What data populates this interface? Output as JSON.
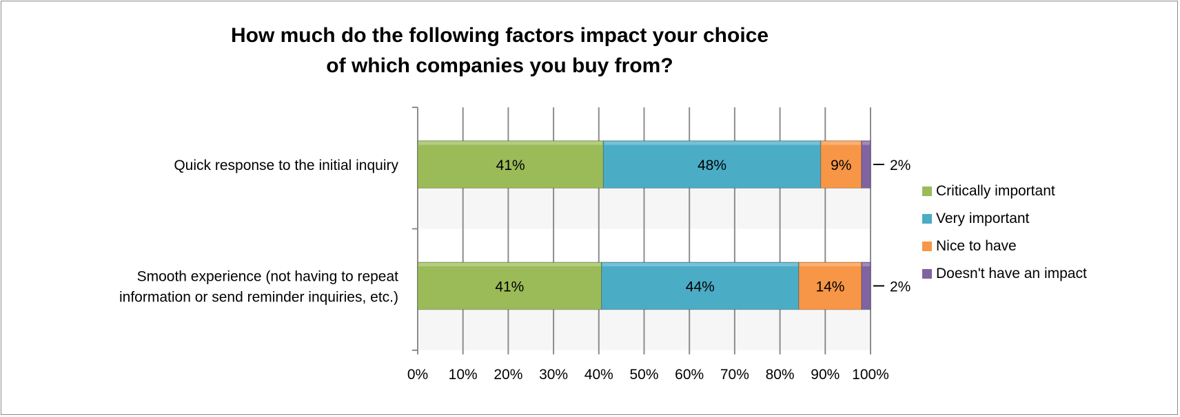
{
  "chart_data": {
    "type": "bar",
    "orientation": "horizontal",
    "stacked": "100%",
    "title": "How much do the following factors impact your choice of which companies you buy from?",
    "title_lines": [
      "How much do the following factors impact your choice",
      "of which companies you buy from?"
    ],
    "categories": [
      [
        "Quick response to the initial inquiry"
      ],
      [
        "Smooth experience (not having to repeat",
        "information or send reminder inquiries, etc.)"
      ]
    ],
    "category_names": [
      "Quick response to the initial inquiry",
      "Smooth experience (not having to repeat information or send reminder inquiries, etc.)"
    ],
    "series": [
      {
        "name": "Critically important",
        "color": "#9bbb59",
        "values": [
          41,
          41
        ]
      },
      {
        "name": "Very important",
        "color": "#4bacc6",
        "values": [
          48,
          44
        ]
      },
      {
        "name": "Nice to have",
        "color": "#f79646",
        "values": [
          9,
          14
        ]
      },
      {
        "name": "Doesn't have an impact",
        "color": "#8064a2",
        "values": [
          2,
          2
        ]
      }
    ],
    "xlim": [
      0,
      100
    ],
    "xticks": [
      "0%",
      "10%",
      "20%",
      "30%",
      "40%",
      "50%",
      "60%",
      "70%",
      "80%",
      "90%",
      "100%"
    ],
    "grid": true,
    "legend": "right"
  }
}
